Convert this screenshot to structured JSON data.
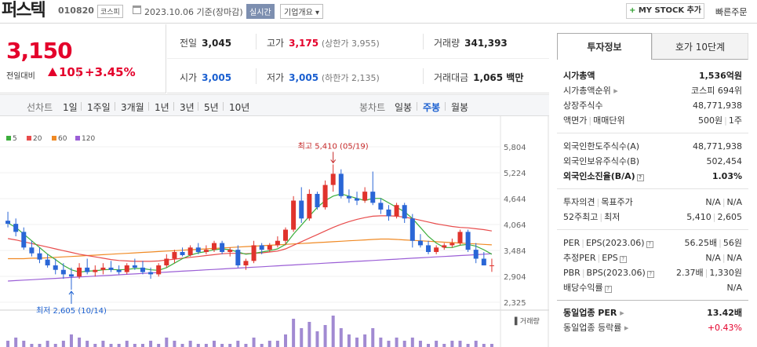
{
  "header": {
    "name": "퍼스텍",
    "code": "010820",
    "market": "코스피",
    "date": "2023.10.06",
    "basis": "기준(장마감)",
    "realtime": "실시간",
    "company_overview": "기업개요",
    "my_stock": "MY STOCK 추가",
    "quick_order": "빠른주문"
  },
  "price": {
    "current": "3,150",
    "change_label": "전일대비",
    "change": "105",
    "change_pct": "+3.45%"
  },
  "summary": {
    "prev_label": "전일",
    "prev": "3,045",
    "high_label": "고가",
    "high": "3,175",
    "upper_limit": "(상한가 3,955)",
    "volume_label": "거래량",
    "volume": "341,393",
    "open_label": "시가",
    "open": "3,005",
    "low_label": "저가",
    "low": "3,005",
    "lower_limit": "(하한가 2,135)",
    "amount_label": "거래대금",
    "amount": "1,065 백만"
  },
  "period": {
    "line_label": "선차트",
    "line_periods": [
      "1일",
      "1주일",
      "3개월",
      "1년",
      "3년",
      "5년",
      "10년"
    ],
    "candle_label": "봉차트",
    "candle_periods": [
      "일봉",
      "주봉",
      "월봉"
    ],
    "active_candle": "주봉"
  },
  "legend": [
    {
      "label": "5",
      "color": "#3cae3c"
    },
    {
      "label": "20",
      "color": "#e84c4c"
    },
    {
      "label": "60",
      "color": "#f08a24"
    },
    {
      "label": "120",
      "color": "#9b5fd6"
    }
  ],
  "chart_data": {
    "type": "candlestick",
    "period": "weekly",
    "y_ticks": [
      "5,804",
      "5,224",
      "4,644",
      "4,064",
      "3,484",
      "2,904",
      "2,325"
    ],
    "ylim": [
      2325,
      5804
    ],
    "high_annotation": "최고 5,410 (05/19)",
    "low_annotation": "최저 2,605 (10/14)",
    "volume_label": "거래량",
    "up_color": "#e0332c",
    "down_color": "#2a66d6",
    "candles": [
      [
        4150,
        4350,
        4000,
        4080
      ],
      [
        4080,
        4200,
        3800,
        3900
      ],
      [
        3900,
        4000,
        3500,
        3550
      ],
      [
        3550,
        3700,
        3350,
        3420
      ],
      [
        3420,
        3550,
        3200,
        3280
      ],
      [
        3280,
        3400,
        3100,
        3150
      ],
      [
        3150,
        3300,
        2950,
        3050
      ],
      [
        3050,
        3200,
        2850,
        2950
      ],
      [
        2950,
        3100,
        2605,
        2900
      ],
      [
        2900,
        3200,
        2850,
        3100
      ],
      [
        3100,
        3300,
        2950,
        3000
      ],
      [
        3000,
        3150,
        2900,
        3050
      ],
      [
        3050,
        3200,
        2950,
        3100
      ],
      [
        3100,
        3250,
        3000,
        3050
      ],
      [
        3050,
        3150,
        2950,
        3000
      ],
      [
        3000,
        3200,
        2950,
        3150
      ],
      [
        3150,
        3300,
        3050,
        3100
      ],
      [
        3100,
        3250,
        2950,
        3000
      ],
      [
        3000,
        3100,
        2850,
        2950
      ],
      [
        2950,
        3200,
        2900,
        3150
      ],
      [
        3150,
        3400,
        3100,
        3300
      ],
      [
        3300,
        3500,
        3200,
        3450
      ],
      [
        3450,
        3550,
        3350,
        3380
      ],
      [
        3380,
        3600,
        3350,
        3550
      ],
      [
        3550,
        3650,
        3400,
        3450
      ],
      [
        3450,
        3600,
        3400,
        3500
      ],
      [
        3500,
        3700,
        3450,
        3650
      ],
      [
        3650,
        3700,
        3400,
        3450
      ],
      [
        3450,
        3550,
        3350,
        3500
      ],
      [
        3500,
        3600,
        3100,
        3150
      ],
      [
        3150,
        3300,
        3050,
        3250
      ],
      [
        3250,
        3700,
        3200,
        3600
      ],
      [
        3600,
        3650,
        3400,
        3500
      ],
      [
        3500,
        3650,
        3450,
        3600
      ],
      [
        3600,
        3800,
        3550,
        3700
      ],
      [
        3700,
        4000,
        3600,
        3950
      ],
      [
        3950,
        4700,
        3900,
        4600
      ],
      [
        4600,
        4900,
        4100,
        4200
      ],
      [
        4200,
        4850,
        4150,
        4750
      ],
      [
        4750,
        4800,
        4400,
        4450
      ],
      [
        4450,
        5050,
        4400,
        4950
      ],
      [
        4950,
        5410,
        4800,
        5200
      ],
      [
        5200,
        5300,
        4650,
        4700
      ],
      [
        4700,
        4850,
        4550,
        4650
      ],
      [
        4650,
        4800,
        4500,
        4600
      ],
      [
        4600,
        4900,
        4550,
        4800
      ],
      [
        4800,
        5250,
        4500,
        4550
      ],
      [
        4550,
        4650,
        4300,
        4400
      ],
      [
        4400,
        4500,
        4150,
        4250
      ],
      [
        4250,
        4550,
        4200,
        4500
      ],
      [
        4500,
        4550,
        4100,
        4200
      ],
      [
        4200,
        4300,
        3550,
        3700
      ],
      [
        3700,
        3850,
        3550,
        3600
      ],
      [
        3600,
        3700,
        3400,
        3450
      ],
      [
        3450,
        3600,
        3400,
        3550
      ],
      [
        3550,
        3650,
        3500,
        3600
      ],
      [
        3600,
        3750,
        3550,
        3650
      ],
      [
        3650,
        3950,
        3600,
        3900
      ],
      [
        3900,
        3950,
        3450,
        3500
      ],
      [
        3500,
        3650,
        3200,
        3300
      ],
      [
        3300,
        3450,
        3150,
        3150
      ],
      [
        3150,
        3300,
        3005,
        3150
      ]
    ],
    "ma5": [
      4100,
      4000,
      3850,
      3700,
      3550,
      3400,
      3280,
      3150,
      3050,
      3000,
      3020,
      3030,
      3050,
      3060,
      3050,
      3060,
      3080,
      3080,
      3050,
      3040,
      3100,
      3200,
      3300,
      3380,
      3430,
      3460,
      3500,
      3520,
      3500,
      3450,
      3400,
      3420,
      3450,
      3480,
      3520,
      3620,
      3850,
      4050,
      4250,
      4450,
      4600,
      4700,
      4750,
      4700,
      4650,
      4600,
      4650,
      4650,
      4550,
      4450,
      4350,
      4200,
      4000,
      3800,
      3650,
      3550,
      3550,
      3600,
      3620,
      3580,
      3500,
      3400
    ],
    "ma20": [
      3750,
      3720,
      3680,
      3640,
      3600,
      3560,
      3520,
      3480,
      3440,
      3400,
      3370,
      3340,
      3310,
      3280,
      3260,
      3250,
      3240,
      3240,
      3240,
      3250,
      3270,
      3290,
      3310,
      3330,
      3350,
      3370,
      3390,
      3410,
      3420,
      3420,
      3410,
      3420,
      3430,
      3450,
      3470,
      3520,
      3600,
      3680,
      3760,
      3840,
      3920,
      4000,
      4070,
      4130,
      4180,
      4220,
      4250,
      4260,
      4260,
      4250,
      4230,
      4200,
      4160,
      4120,
      4080,
      4050,
      4020,
      4000,
      3990,
      3970,
      3950,
      3920
    ],
    "ma60": [
      3300,
      3300,
      3300,
      3310,
      3310,
      3320,
      3330,
      3340,
      3350,
      3360,
      3370,
      3380,
      3390,
      3400,
      3410,
      3420,
      3430,
      3440,
      3450,
      3460,
      3470,
      3480,
      3490,
      3500,
      3510,
      3520,
      3530,
      3540,
      3550,
      3560,
      3570,
      3580,
      3590,
      3600,
      3610,
      3620,
      3630,
      3640,
      3650,
      3660,
      3670,
      3680,
      3690,
      3700,
      3710,
      3720,
      3730,
      3740,
      3740,
      3730,
      3720,
      3710,
      3700,
      3690,
      3680,
      3670,
      3660,
      3650,
      3640,
      3630,
      3620,
      3610
    ],
    "ma120": [
      2800,
      2810,
      2820,
      2830,
      2840,
      2850,
      2860,
      2870,
      2880,
      2890,
      2900,
      2910,
      2920,
      2930,
      2940,
      2950,
      2960,
      2970,
      2980,
      2990,
      3000,
      3010,
      3020,
      3030,
      3040,
      3050,
      3060,
      3070,
      3080,
      3090,
      3100,
      3110,
      3120,
      3130,
      3140,
      3150,
      3160,
      3170,
      3180,
      3190,
      3200,
      3210,
      3220,
      3230,
      3240,
      3250,
      3260,
      3270,
      3280,
      3290,
      3300,
      3310,
      3320,
      3330,
      3340,
      3350,
      3360,
      3370,
      3380,
      3390,
      3400,
      3410
    ],
    "volumes": [
      2,
      3,
      2,
      1,
      1,
      2,
      1,
      2,
      4,
      3,
      2,
      1,
      2,
      1,
      1,
      2,
      1,
      1,
      2,
      1,
      3,
      2,
      1,
      2,
      1,
      1,
      2,
      1,
      1,
      2,
      1,
      3,
      1,
      2,
      2,
      4,
      9,
      6,
      8,
      5,
      7,
      10,
      6,
      4,
      3,
      4,
      6,
      3,
      2,
      3,
      2,
      3,
      2,
      1,
      2,
      1,
      2,
      2,
      1,
      2,
      1,
      1
    ]
  },
  "right_panel": {
    "tab_active": "투자정보",
    "tab_inactive": "호가 10단계",
    "market_cap_label": "시가총액",
    "market_cap": "1,536억원",
    "cap_rank_label": "시가총액순위",
    "cap_rank": "코스피 694위",
    "shares_label": "상장주식수",
    "shares": "48,771,938",
    "face_label": "액면가",
    "unit_label": "매매단위",
    "face": "500원",
    "unit": "1주",
    "foreign_limit_label": "외국인한도주식수(A)",
    "foreign_limit": "48,771,938",
    "foreign_hold_label": "외국인보유주식수(B)",
    "foreign_hold": "502,454",
    "foreign_ratio_label": "외국인소진율(B/A)",
    "foreign_ratio": "1.03%",
    "opinion_label": "투자의견",
    "target_label": "목표주가",
    "opinion": "N/A",
    "target": "N/A",
    "week52_high_label": "52주최고",
    "week52_low_label": "최저",
    "week52_high": "5,410",
    "week52_low": "2,605",
    "per_label": "PER",
    "eps_label": "EPS(2023.06)",
    "per": "56.25배",
    "eps": "56원",
    "est_per_label": "추정PER",
    "est_eps_label": "EPS",
    "est_per": "N/A",
    "est_eps": "N/A",
    "pbr_label": "PBR",
    "bps_label": "BPS(2023.06)",
    "pbr": "2.37배",
    "bps": "1,330원",
    "div_label": "배당수익률",
    "div": "N/A",
    "sector_per_label": "동일업종 PER",
    "sector_per": "13.42배",
    "sector_change_label": "동일업종 등락률",
    "sector_change": "+0.43%"
  }
}
